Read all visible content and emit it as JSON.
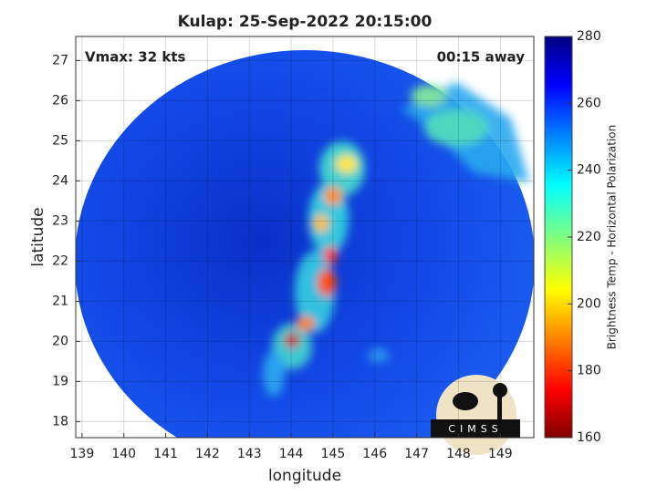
{
  "chart_data": {
    "type": "map",
    "title": "Kulap: 25-Sep-2022 20:15:00",
    "xlabel": "longitude",
    "ylabel": "latitude",
    "xlim": [
      138.85,
      149.8
    ],
    "ylim": [
      17.6,
      27.6
    ],
    "xticks": [
      139,
      140,
      141,
      142,
      143,
      144,
      145,
      146,
      147,
      148,
      149
    ],
    "yticks": [
      18,
      19,
      20,
      21,
      22,
      23,
      24,
      25,
      26,
      27
    ],
    "grid": true,
    "annotations": [
      "Vmax: 32 kts",
      "00:15 away"
    ],
    "colorbar": {
      "label": "Brightness Temp - Horizontal Polarization",
      "clim": [
        160,
        280
      ],
      "ticks": [
        160,
        180,
        200,
        220,
        240,
        260,
        280
      ]
    },
    "logo": "CIMSS"
  }
}
